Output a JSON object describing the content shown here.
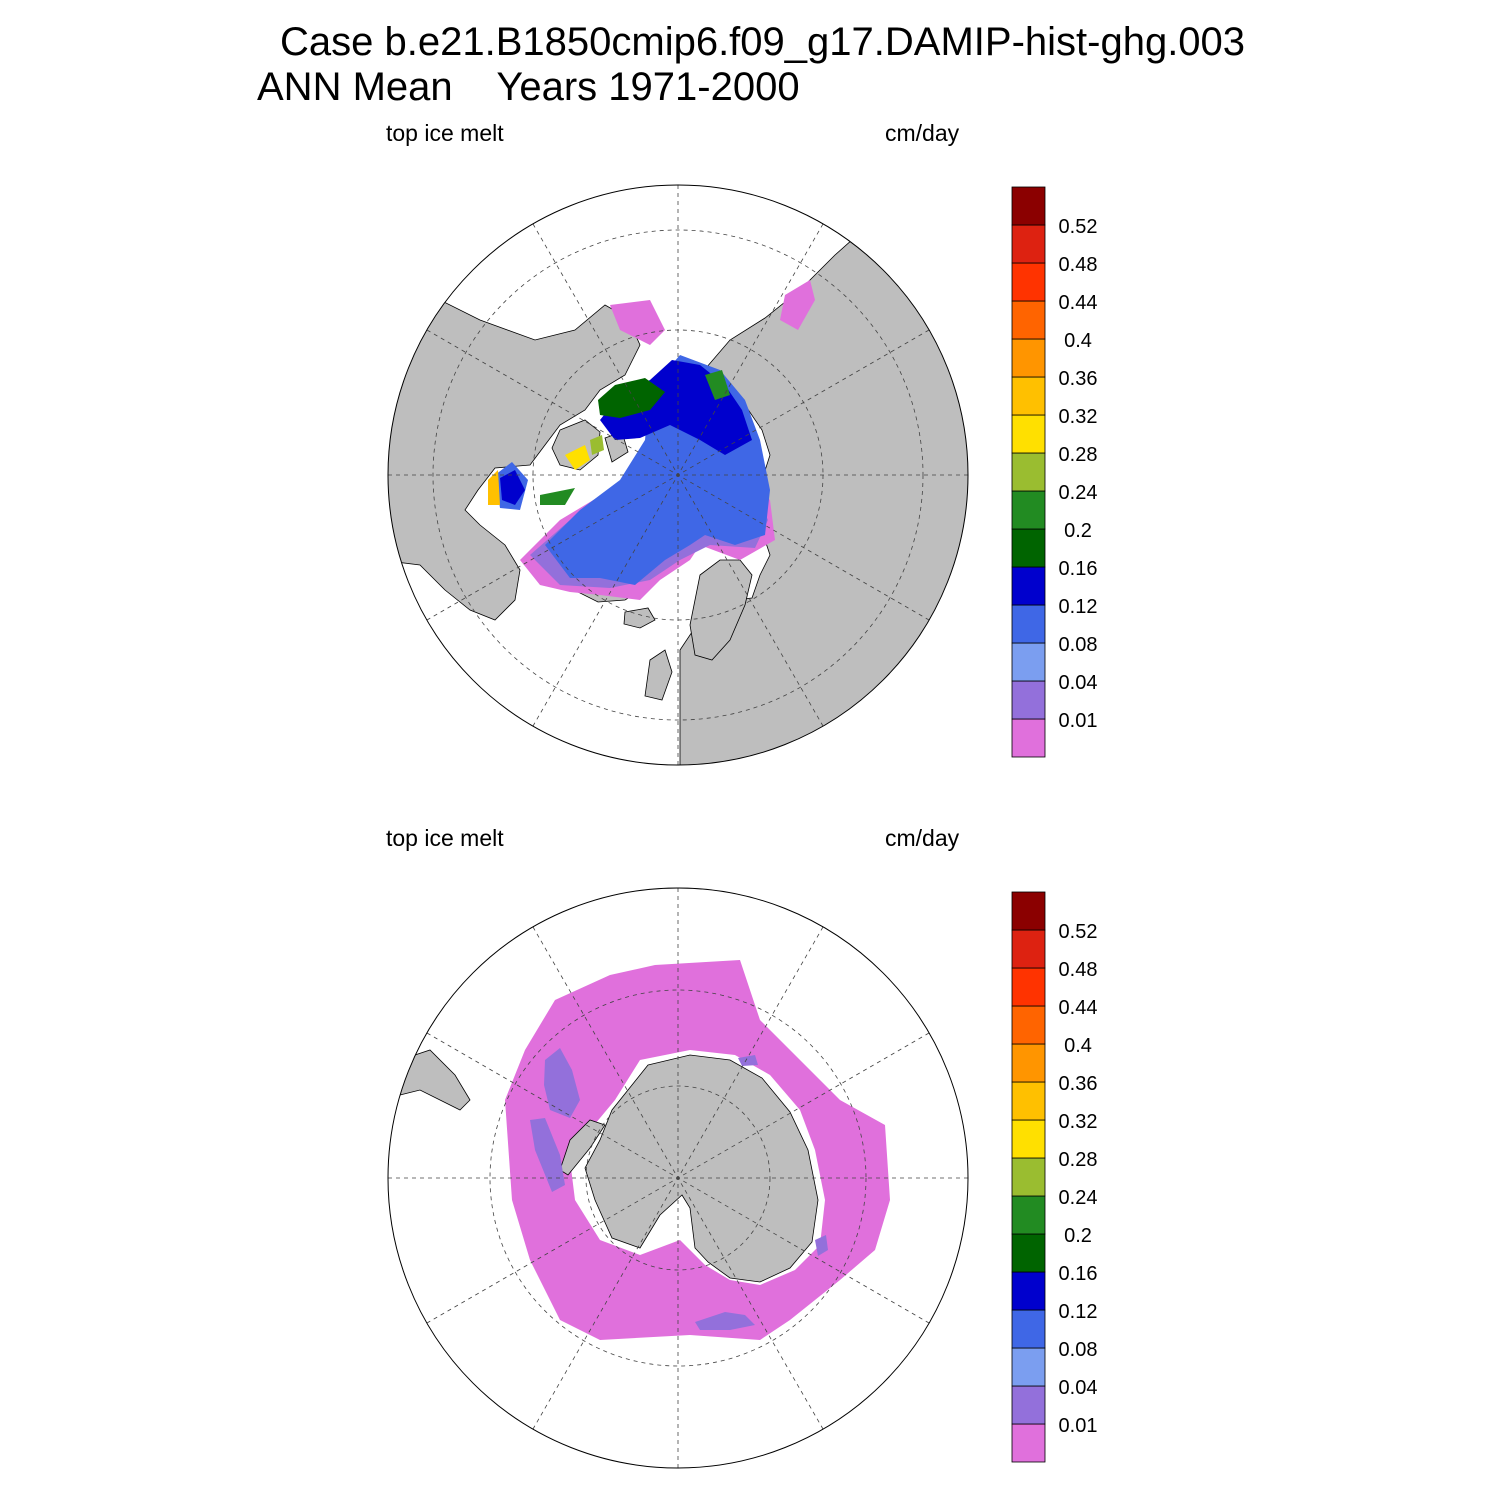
{
  "title": {
    "line1": "Case b.e21.B1850cmip6.f09_g17.DAMIP-hist-ghg.003",
    "line2": "ANN Mean    Years 1971-2000"
  },
  "panels": [
    {
      "id": "north",
      "hemisphere": "Northern Hemisphere (polar stereographic)",
      "variable_label": "top ice melt",
      "units_label": "cm/day"
    },
    {
      "id": "south",
      "hemisphere": "Southern Hemisphere (polar stereographic)",
      "variable_label": "top ice melt",
      "units_label": "cm/day"
    }
  ],
  "colorbar": {
    "levels": [
      "0.01",
      "0.04",
      "0.08",
      "0.12",
      "0.16",
      "0.2",
      "0.24",
      "0.28",
      "0.32",
      "0.36",
      "0.4",
      "0.44",
      "0.48",
      "0.52"
    ],
    "colors": [
      "#e070dc",
      "#9370db",
      "#7b9ef0",
      "#3f67e6",
      "#0000cd",
      "#006400",
      "#228b22",
      "#9abd30",
      "#ffe000",
      "#ffc000",
      "#ff9500",
      "#ff6400",
      "#ff3300",
      "#dd2211",
      "#8b0000"
    ]
  },
  "map_colors": {
    "land": "#bebebe",
    "ocean": "#ffffff",
    "grid": "#444444"
  }
}
